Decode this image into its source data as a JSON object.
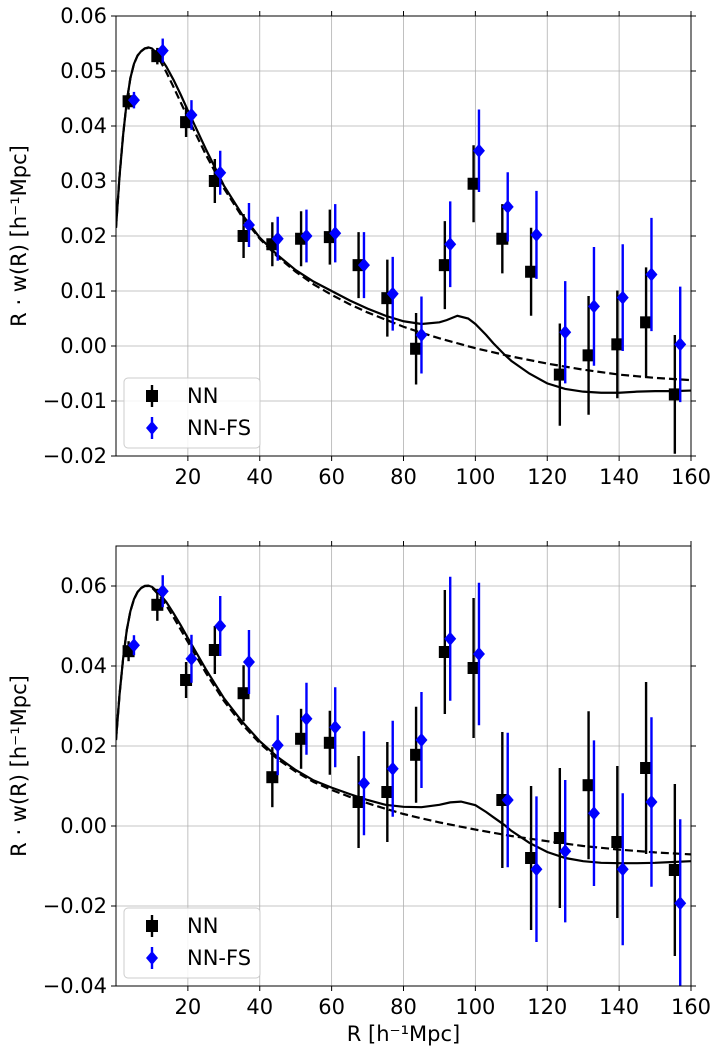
{
  "chart_data": [
    {
      "type": "scatter",
      "panel": "top",
      "xlabel": "",
      "ylabel": "R · w(R) [h⁻¹Mpc]",
      "xlim": [
        0,
        160
      ],
      "ylim": [
        -0.02,
        0.06
      ],
      "xticks": [
        "20",
        "40",
        "60",
        "80",
        "100",
        "120",
        "140",
        "160"
      ],
      "yticks": [
        "−0.02",
        "−0.01",
        "0.00",
        "0.01",
        "0.02",
        "0.03",
        "0.04",
        "0.05",
        "0.06"
      ],
      "grid": true,
      "legend_position": "bottom-left",
      "series": [
        {
          "name": "NN",
          "color": "#000000",
          "marker": "square",
          "points": [
            {
              "x": 3.5,
              "y": 0.0445,
              "err": 0.0015
            },
            {
              "x": 11.5,
              "y": 0.0527,
              "err": 0.0015
            },
            {
              "x": 19.5,
              "y": 0.0407,
              "err": 0.0027
            },
            {
              "x": 27.5,
              "y": 0.03,
              "err": 0.004
            },
            {
              "x": 35.5,
              "y": 0.02,
              "err": 0.004
            },
            {
              "x": 43.5,
              "y": 0.0185,
              "err": 0.004
            },
            {
              "x": 51.5,
              "y": 0.0195,
              "err": 0.005
            },
            {
              "x": 59.5,
              "y": 0.0198,
              "err": 0.005
            },
            {
              "x": 67.5,
              "y": 0.0147,
              "err": 0.006
            },
            {
              "x": 75.5,
              "y": 0.0087,
              "err": 0.007
            },
            {
              "x": 83.5,
              "y": -0.0005,
              "err": 0.0065
            },
            {
              "x": 91.5,
              "y": 0.0147,
              "err": 0.008
            },
            {
              "x": 99.5,
              "y": 0.0295,
              "err": 0.007
            },
            {
              "x": 107.5,
              "y": 0.0195,
              "err": 0.0063
            },
            {
              "x": 115.5,
              "y": 0.0135,
              "err": 0.008
            },
            {
              "x": 123.5,
              "y": -0.0052,
              "err": 0.0093
            },
            {
              "x": 131.5,
              "y": -0.0017,
              "err": 0.0108
            },
            {
              "x": 139.5,
              "y": 0.0003,
              "err": 0.0098
            },
            {
              "x": 147.5,
              "y": 0.0043,
              "err": 0.01
            },
            {
              "x": 155.5,
              "y": -0.0088,
              "err": 0.0108
            }
          ]
        },
        {
          "name": "NN-FS",
          "color": "#0000ff",
          "marker": "diamond",
          "points": [
            {
              "x": 5.0,
              "y": 0.0447,
              "err": 0.0015
            },
            {
              "x": 13.0,
              "y": 0.0537,
              "err": 0.0022
            },
            {
              "x": 21.0,
              "y": 0.042,
              "err": 0.0027
            },
            {
              "x": 29.0,
              "y": 0.0315,
              "err": 0.004
            },
            {
              "x": 37.0,
              "y": 0.022,
              "err": 0.004
            },
            {
              "x": 45.0,
              "y": 0.0195,
              "err": 0.004
            },
            {
              "x": 53.0,
              "y": 0.02,
              "err": 0.0048
            },
            {
              "x": 61.0,
              "y": 0.0205,
              "err": 0.0053
            },
            {
              "x": 69.0,
              "y": 0.0147,
              "err": 0.006
            },
            {
              "x": 77.0,
              "y": 0.0095,
              "err": 0.0067
            },
            {
              "x": 85.0,
              "y": 0.002,
              "err": 0.007
            },
            {
              "x": 93.0,
              "y": 0.0185,
              "err": 0.0078
            },
            {
              "x": 101.0,
              "y": 0.0355,
              "err": 0.0075
            },
            {
              "x": 109.0,
              "y": 0.0253,
              "err": 0.0063
            },
            {
              "x": 117.0,
              "y": 0.0202,
              "err": 0.008
            },
            {
              "x": 125.0,
              "y": 0.0025,
              "err": 0.0093
            },
            {
              "x": 133.0,
              "y": 0.0072,
              "err": 0.0108
            },
            {
              "x": 141.0,
              "y": 0.0088,
              "err": 0.0097
            },
            {
              "x": 149.0,
              "y": 0.013,
              "err": 0.0103
            },
            {
              "x": 157.0,
              "y": 0.0003,
              "err": 0.0105
            }
          ]
        }
      ],
      "curves": [
        {
          "style": "solid",
          "color": "#000000",
          "x": [
            0,
            1,
            2,
            3,
            4,
            5,
            6,
            7,
            8,
            9,
            10,
            12,
            14,
            16,
            18,
            20,
            25,
            30,
            35,
            40,
            45,
            50,
            55,
            60,
            65,
            70,
            75,
            80,
            85,
            90,
            92,
            95,
            98,
            100,
            103,
            105,
            108,
            110,
            115,
            120,
            125,
            130,
            135,
            140,
            145,
            150,
            155,
            160
          ],
          "y": [
            0.0215,
            0.031,
            0.0385,
            0.0445,
            0.0487,
            0.0513,
            0.0528,
            0.0536,
            0.0541,
            0.0543,
            0.0541,
            0.0528,
            0.0508,
            0.0484,
            0.0457,
            0.0428,
            0.0358,
            0.0292,
            0.024,
            0.0197,
            0.0165,
            0.0138,
            0.0117,
            0.01,
            0.0083,
            0.0068,
            0.0055,
            0.0045,
            0.004,
            0.0043,
            0.0047,
            0.0055,
            0.005,
            0.004,
            0.002,
            0.0005,
            -0.0015,
            -0.0027,
            -0.005,
            -0.0068,
            -0.0078,
            -0.0083,
            -0.0085,
            -0.0085,
            -0.0083,
            -0.0082,
            -0.0082,
            -0.0081
          ]
        },
        {
          "style": "dashed",
          "color": "#000000",
          "x": [
            0,
            1,
            2,
            3,
            4,
            5,
            6,
            7,
            8,
            9,
            10,
            12,
            14,
            16,
            18,
            20,
            25,
            30,
            35,
            40,
            45,
            50,
            55,
            60,
            65,
            70,
            75,
            80,
            85,
            90,
            95,
            100,
            110,
            120,
            130,
            140,
            150,
            160
          ],
          "y": [
            0.0215,
            0.031,
            0.0385,
            0.0445,
            0.0487,
            0.0513,
            0.0528,
            0.0536,
            0.0541,
            0.0542,
            0.0539,
            0.0522,
            0.0498,
            0.0471,
            0.0443,
            0.0415,
            0.0348,
            0.0287,
            0.0236,
            0.0195,
            0.0162,
            0.0135,
            0.0112,
            0.0093,
            0.0076,
            0.0061,
            0.0048,
            0.0035,
            0.0024,
            0.0014,
            0.0005,
            -0.0004,
            -0.0019,
            -0.0032,
            -0.0043,
            -0.0052,
            -0.0058,
            -0.0062
          ]
        }
      ]
    },
    {
      "type": "scatter",
      "panel": "bottom",
      "xlabel": "R [h⁻¹Mpc]",
      "ylabel": "R · w(R) [h⁻¹Mpc]",
      "xlim": [
        0,
        160
      ],
      "ylim": [
        -0.04,
        0.07
      ],
      "xticks": [
        "20",
        "40",
        "60",
        "80",
        "100",
        "120",
        "140",
        "160"
      ],
      "yticks": [
        "−0.04",
        "−0.02",
        "0.00",
        "0.02",
        "0.04",
        "0.06"
      ],
      "grid": true,
      "legend_position": "bottom-left",
      "series": [
        {
          "name": "NN",
          "color": "#000000",
          "marker": "square",
          "points": [
            {
              "x": 3.5,
              "y": 0.0437,
              "err": 0.0025
            },
            {
              "x": 11.5,
              "y": 0.0553,
              "err": 0.004
            },
            {
              "x": 19.5,
              "y": 0.0365,
              "err": 0.0045
            },
            {
              "x": 27.5,
              "y": 0.044,
              "err": 0.006
            },
            {
              "x": 35.5,
              "y": 0.0332,
              "err": 0.007
            },
            {
              "x": 43.5,
              "y": 0.0122,
              "err": 0.0075
            },
            {
              "x": 51.5,
              "y": 0.0218,
              "err": 0.0075
            },
            {
              "x": 59.5,
              "y": 0.0208,
              "err": 0.008
            },
            {
              "x": 67.5,
              "y": 0.006,
              "err": 0.0115
            },
            {
              "x": 75.5,
              "y": 0.0085,
              "err": 0.0125
            },
            {
              "x": 83.5,
              "y": 0.0178,
              "err": 0.012
            },
            {
              "x": 91.5,
              "y": 0.0435,
              "err": 0.0155
            },
            {
              "x": 99.5,
              "y": 0.0395,
              "err": 0.0175
            },
            {
              "x": 107.5,
              "y": 0.0065,
              "err": 0.017
            },
            {
              "x": 115.5,
              "y": -0.008,
              "err": 0.018
            },
            {
              "x": 123.5,
              "y": -0.003,
              "err": 0.0175
            },
            {
              "x": 131.5,
              "y": 0.0102,
              "err": 0.0185
            },
            {
              "x": 139.5,
              "y": -0.004,
              "err": 0.019
            },
            {
              "x": 147.5,
              "y": 0.0145,
              "err": 0.0215
            },
            {
              "x": 155.5,
              "y": -0.011,
              "err": 0.0215
            }
          ]
        },
        {
          "name": "NN-FS",
          "color": "#0000ff",
          "marker": "diamond",
          "points": [
            {
              "x": 5.0,
              "y": 0.0452,
              "err": 0.0025
            },
            {
              "x": 13.0,
              "y": 0.0587,
              "err": 0.004
            },
            {
              "x": 21.0,
              "y": 0.0418,
              "err": 0.006
            },
            {
              "x": 29.0,
              "y": 0.05,
              "err": 0.0075
            },
            {
              "x": 37.0,
              "y": 0.041,
              "err": 0.008
            },
            {
              "x": 45.0,
              "y": 0.0202,
              "err": 0.0075
            },
            {
              "x": 53.0,
              "y": 0.0268,
              "err": 0.009
            },
            {
              "x": 61.0,
              "y": 0.0247,
              "err": 0.01
            },
            {
              "x": 69.0,
              "y": 0.0107,
              "err": 0.013
            },
            {
              "x": 77.0,
              "y": 0.0143,
              "err": 0.012
            },
            {
              "x": 85.0,
              "y": 0.0215,
              "err": 0.012
            },
            {
              "x": 93.0,
              "y": 0.0468,
              "err": 0.0155
            },
            {
              "x": 101.0,
              "y": 0.043,
              "err": 0.0178
            },
            {
              "x": 109.0,
              "y": 0.0065,
              "err": 0.0168
            },
            {
              "x": 117.0,
              "y": -0.0108,
              "err": 0.0182
            },
            {
              "x": 125.0,
              "y": -0.0063,
              "err": 0.0178
            },
            {
              "x": 133.0,
              "y": 0.0032,
              "err": 0.0182
            },
            {
              "x": 141.0,
              "y": -0.0108,
              "err": 0.019
            },
            {
              "x": 149.0,
              "y": 0.006,
              "err": 0.0212
            },
            {
              "x": 157.0,
              "y": -0.0193,
              "err": 0.021
            }
          ]
        }
      ],
      "curves": [
        {
          "style": "solid",
          "color": "#000000",
          "x": [
            0,
            1,
            2,
            3,
            4,
            5,
            6,
            7,
            8,
            9,
            10,
            12,
            14,
            16,
            18,
            20,
            25,
            30,
            35,
            40,
            45,
            50,
            55,
            60,
            65,
            70,
            75,
            80,
            85,
            90,
            93,
            96,
            100,
            103,
            105,
            108,
            110,
            115,
            120,
            125,
            130,
            135,
            140,
            145,
            150,
            155,
            160
          ],
          "y": [
            0.0215,
            0.033,
            0.042,
            0.049,
            0.0537,
            0.0567,
            0.0585,
            0.0595,
            0.06,
            0.0601,
            0.0598,
            0.0582,
            0.056,
            0.0532,
            0.0502,
            0.047,
            0.0392,
            0.032,
            0.0262,
            0.0212,
            0.0172,
            0.014,
            0.0114,
            0.0096,
            0.008,
            0.0065,
            0.0053,
            0.0048,
            0.0047,
            0.0053,
            0.0059,
            0.0061,
            0.0052,
            0.0035,
            0.0022,
            0.0003,
            -0.0012,
            -0.0042,
            -0.0065,
            -0.008,
            -0.0088,
            -0.0092,
            -0.0093,
            -0.0093,
            -0.0092,
            -0.009,
            -0.0088
          ]
        },
        {
          "style": "dashed",
          "color": "#000000",
          "x": [
            0,
            1,
            2,
            3,
            4,
            5,
            6,
            7,
            8,
            9,
            10,
            12,
            14,
            16,
            18,
            20,
            25,
            30,
            35,
            40,
            45,
            50,
            55,
            60,
            65,
            70,
            75,
            80,
            85,
            90,
            95,
            100,
            110,
            120,
            130,
            140,
            150,
            160
          ],
          "y": [
            0.0215,
            0.033,
            0.042,
            0.049,
            0.0537,
            0.0567,
            0.0585,
            0.0595,
            0.06,
            0.06,
            0.0596,
            0.0577,
            0.0551,
            0.0522,
            0.0491,
            0.046,
            0.0383,
            0.0313,
            0.0255,
            0.0207,
            0.0167,
            0.0136,
            0.011,
            0.009,
            0.0073,
            0.0057,
            0.0043,
            0.003,
            0.0019,
            0.0009,
            0.0,
            -0.0009,
            -0.0025,
            -0.0038,
            -0.005,
            -0.0059,
            -0.0066,
            -0.0071
          ]
        }
      ]
    }
  ]
}
